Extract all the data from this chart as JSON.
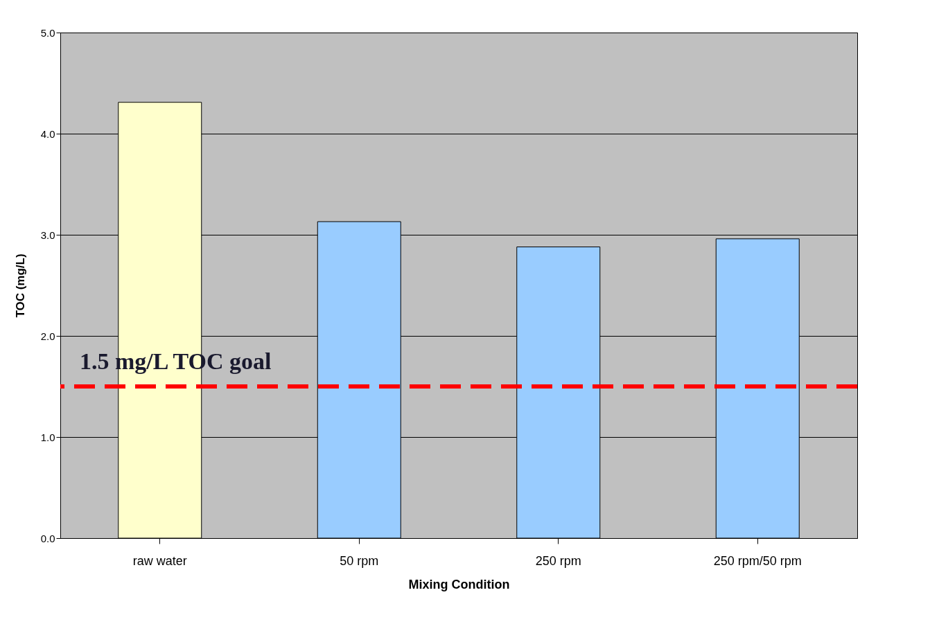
{
  "chart_data": {
    "type": "bar",
    "xlabel": "Mixing Condition",
    "ylabel": "TOC (mg/L)",
    "categories": [
      "raw water",
      "50 rpm",
      "250 rpm",
      "250 rpm/50 rpm"
    ],
    "values": [
      4.31,
      3.13,
      2.88,
      2.96
    ],
    "colors": [
      "#ffffcc",
      "#99ccff",
      "#99ccff",
      "#99ccff"
    ],
    "ylim": [
      0,
      5
    ],
    "yticks": [
      {
        "value": 0,
        "label": "0.0"
      },
      {
        "value": 1,
        "label": "1.0"
      },
      {
        "value": 2,
        "label": "2.0"
      },
      {
        "value": 3,
        "label": "3.0"
      },
      {
        "value": 4,
        "label": "4.0"
      },
      {
        "value": 5,
        "label": "5.0"
      }
    ],
    "grid": "y",
    "ref_lines": [
      {
        "axis": "y",
        "value": 1.5,
        "label": "1.5 mg/L TOC goal",
        "color": "#ff0000",
        "line_style": "dashed"
      }
    ]
  }
}
